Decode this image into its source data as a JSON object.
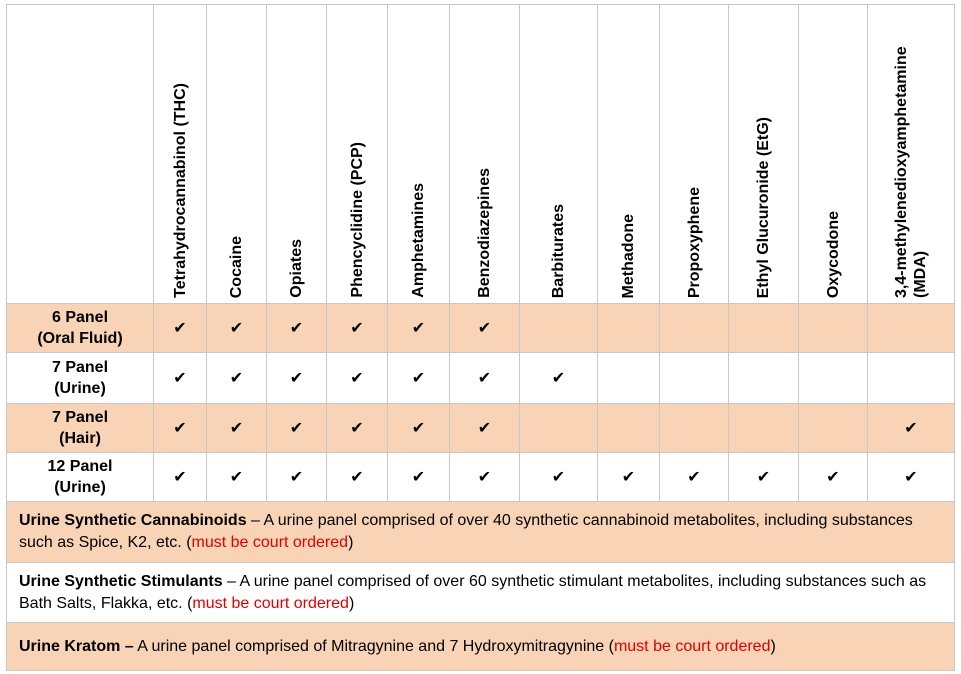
{
  "columns": [
    "Tetrahydrocannabinol (THC)",
    "Cocaine",
    "Opiates",
    "Phencyclidine (PCP)",
    "Amphetamines",
    "Benzodiazepines",
    "Barbiturates",
    "Methadone",
    "Propoxyphene",
    "Ethyl Glucuronide (EtG)",
    "Oxycodone",
    "3,4-methylenedioxyamphetamine (MDA)"
  ],
  "check_symbol": "✔",
  "panels": [
    {
      "line1": "6 Panel",
      "line2": "(Oral Fluid)",
      "checks": [
        true,
        true,
        true,
        true,
        true,
        true,
        false,
        false,
        false,
        false,
        false,
        false
      ],
      "shade": true
    },
    {
      "line1": "7 Panel",
      "line2": "(Urine)",
      "checks": [
        true,
        true,
        true,
        true,
        true,
        true,
        true,
        false,
        false,
        false,
        false,
        false
      ],
      "shade": false
    },
    {
      "line1": "7 Panel",
      "line2": "(Hair)",
      "checks": [
        true,
        true,
        true,
        true,
        true,
        true,
        false,
        false,
        false,
        false,
        false,
        true
      ],
      "shade": true
    },
    {
      "line1": "12 Panel",
      "line2": "(Urine)",
      "checks": [
        true,
        true,
        true,
        true,
        true,
        true,
        true,
        true,
        true,
        true,
        true,
        true
      ],
      "shade": false
    }
  ],
  "descriptions": [
    {
      "title": "Urine Synthetic Cannabinoids",
      "separator": " – ",
      "text": "A urine panel comprised of over 40 synthetic cannabinoid metabolites, including substances such as Spice, K2, etc. (",
      "note": "must be court ordered",
      "close": ")"
    },
    {
      "title": "Urine Synthetic Stimulants",
      "separator": " – ",
      "text": "A urine panel comprised of over 60 synthetic stimulant metabolites, including substances such as Bath Salts, Flakka, etc. (",
      "note": "must be court ordered",
      "close": ")"
    },
    {
      "title": "Urine Kratom –",
      "separator": " ",
      "text": "A urine panel comprised of Mitragynine and 7 Hydroxymitragynine (",
      "note": "must be court ordered",
      "close": ")"
    }
  ],
  "colors": {
    "shade": "#f8d3b6",
    "note": "#e00000",
    "border": "#c8c8c8"
  }
}
